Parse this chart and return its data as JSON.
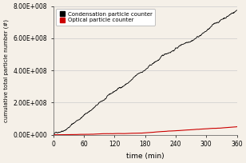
{
  "title": "",
  "xlabel": "time (min)",
  "ylabel": "cumulative total particle number (#)",
  "xlim": [
    0,
    360
  ],
  "ylim": [
    0,
    800000000.0
  ],
  "yticks": [
    0,
    200000000.0,
    400000000.0,
    600000000.0,
    800000000.0
  ],
  "xticks": [
    0,
    60,
    120,
    180,
    240,
    300,
    360
  ],
  "cpc_color": "#000000",
  "opc_color": "#cc0000",
  "legend_labels": [
    "Condensation particle counter",
    "Optical particle counter"
  ],
  "bg_color": "#f5f0e8",
  "grid_color": "#cccccc",
  "seed": 42,
  "n_points": 720,
  "cpc_final": 785000000.0,
  "opc_final": 42000000.0,
  "cpc_noise_scale": 5000000.0,
  "opc_noise_scale": 800000.0
}
